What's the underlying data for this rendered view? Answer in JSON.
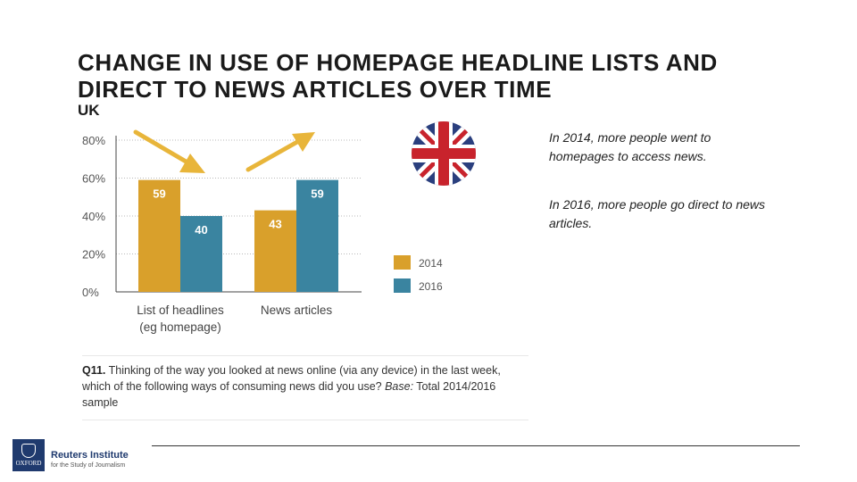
{
  "slide": {
    "title": "CHANGE IN USE OF HOMEPAGE HEADLINE LISTS AND DIRECT TO NEWS ARTICLES OVER TIME",
    "subtitle": "UK"
  },
  "notes": {
    "note1": "In 2014, more people went to homepages to access news.",
    "note2": "In 2016, more people go direct to news articles."
  },
  "question": {
    "label": "Q11.",
    "text_main": " Thinking of the way you looked at news online (via any device) in the last week, which of the following ways of consuming news did you use? ",
    "base_label": "Base:",
    "base_text": " Total 2014/2016 sample"
  },
  "footer": {
    "brand": "Reuters Institute",
    "brand_sub": "for the Study of Journalism",
    "logo_text": "OXFORD"
  },
  "colors": {
    "series_2014": "#d9a02b",
    "series_2016": "#3a84a0",
    "arrow": "#e8b53a",
    "flag_blue": "#2a3f7e",
    "flag_red": "#c8232c"
  },
  "chart_data": {
    "type": "bar",
    "categories": [
      "List of headlines\n(eg homepage)",
      "News articles"
    ],
    "series": [
      {
        "name": "2014",
        "values": [
          59,
          43
        ]
      },
      {
        "name": "2016",
        "values": [
          40,
          59
        ]
      }
    ],
    "yticks": [
      "0%",
      "20%",
      "40%",
      "60%",
      "80%"
    ],
    "ylim": [
      0,
      80
    ],
    "grid": true,
    "legend_position": "right"
  }
}
